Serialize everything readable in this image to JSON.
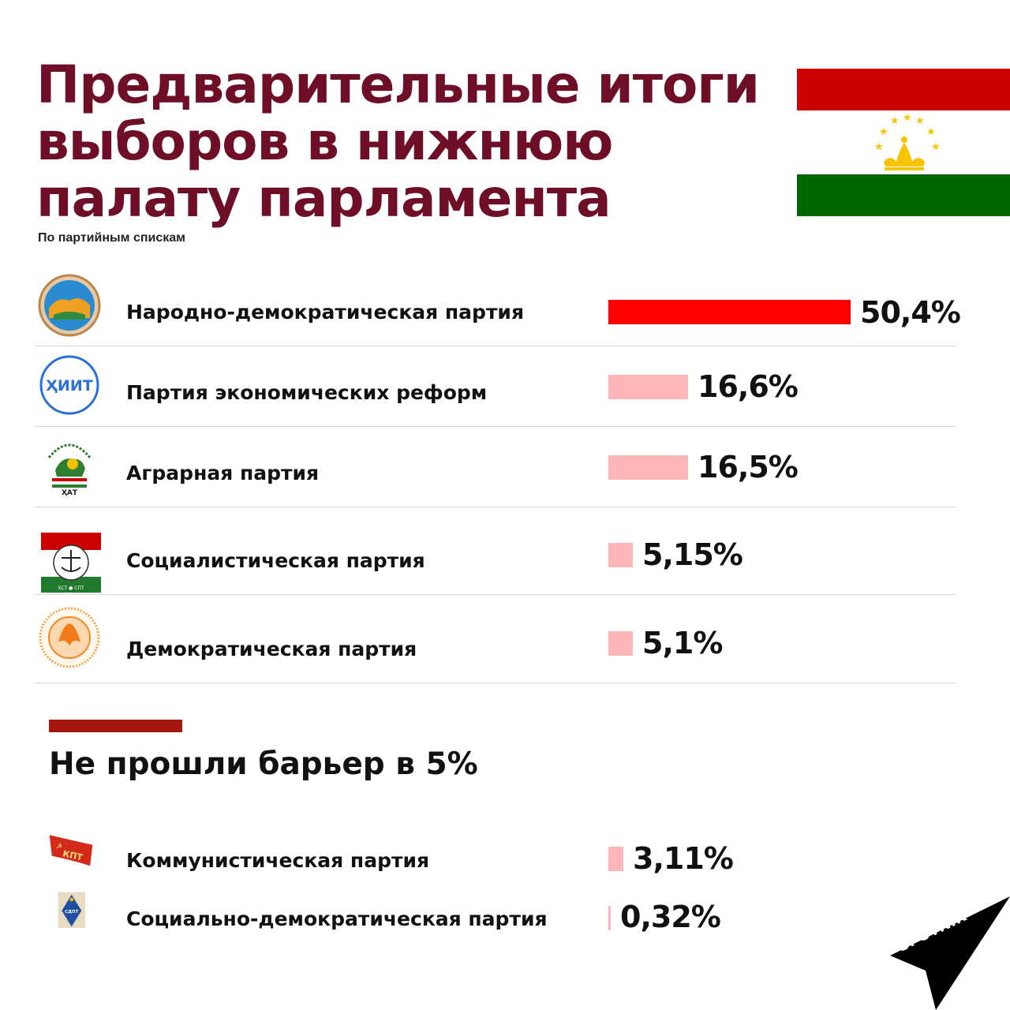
{
  "header": {
    "title": "Предварительные итоги выборов в нижнюю палату парламента",
    "subtitle": "По партийным спискам"
  },
  "section": {
    "title": "Не прошли барьер в 5%"
  },
  "brand": {
    "logo_text": "SPUTNIK"
  },
  "colors": {
    "title": "#6e0f27",
    "bar_leader": "#ff0000",
    "bar_other": "#ffb6b9",
    "section_accent": "#a5170f",
    "flag_red": "#cc0000",
    "flag_white": "#ffffff",
    "flag_green": "#006600",
    "flag_emblem": "#f8c300"
  },
  "parties": [
    {
      "name": "Народно-демократическая партия",
      "value_label": "50,4%",
      "icon": "pdpt-emblem-icon"
    },
    {
      "name": "Партия экономических реформ",
      "value_label": "16,6%",
      "icon": "hiit-logo-icon",
      "logo_text": "ҲИИТ"
    },
    {
      "name": "Аграрная партия",
      "value_label": "16,5%",
      "icon": "agrarian-emblem-icon",
      "logo_text": "ҲАТ"
    },
    {
      "name": "Социалистическая партия",
      "value_label": "5,15%",
      "icon": "socialist-emblem-icon",
      "logo_text": "ҲСТ ● СПТ"
    },
    {
      "name": "Демократическая партия",
      "value_label": "5,1%",
      "icon": "democratic-emblem-icon"
    }
  ],
  "below_threshold": [
    {
      "name": "Коммунистическая партия",
      "value_label": "3,11%",
      "icon": "kpt-flag-icon",
      "logo_text": "КПТ"
    },
    {
      "name": "Социально-демократическая партия",
      "value_label": "0,32%",
      "icon": "sdpt-emblem-icon",
      "logo_text": "СДПТ"
    }
  ],
  "chart_data": {
    "type": "bar",
    "orientation": "horizontal",
    "title": "Предварительные итоги выборов в нижнюю палату парламента",
    "subtitle": "По партийным спискам",
    "categories": [
      "Народно-демократическая партия",
      "Партия экономических реформ",
      "Аграрная партия",
      "Социалистическая партия",
      "Демократическая партия",
      "Коммунистическая партия",
      "Социально-демократическая партия"
    ],
    "values": [
      50.4,
      16.6,
      16.5,
      5.15,
      5.1,
      3.11,
      0.32
    ],
    "unit": "%",
    "threshold": 5,
    "grid": false
  }
}
